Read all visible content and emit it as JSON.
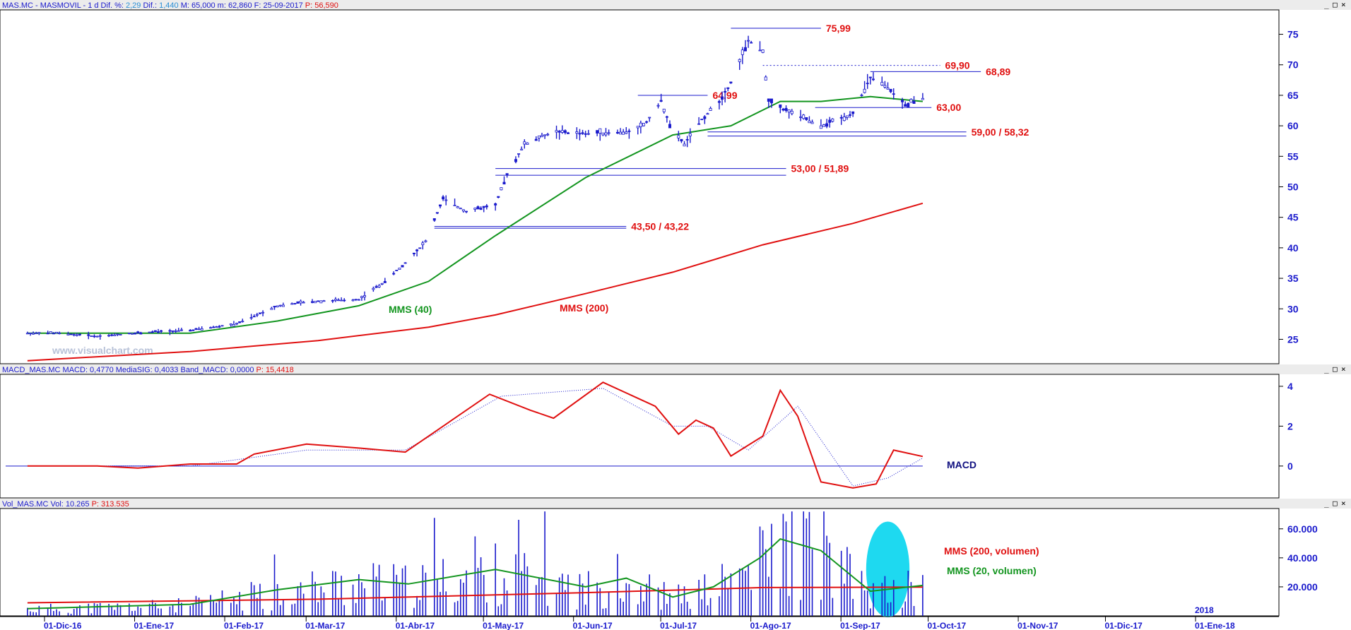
{
  "app": {
    "watermark": "www.visualchart.com"
  },
  "colors": {
    "blue": "#1a1acc",
    "red": "#e01010",
    "green": "#13951f",
    "grid": "#c8c8c8",
    "hl_fill": "#1ed9f0",
    "bg": "#ffffff",
    "header_bg": "#ececec"
  },
  "window_buttons": [
    "_",
    "□",
    "×"
  ],
  "price_panel": {
    "header": [
      {
        "text": "MAS.MC - MASMOVIL -  1 d  Dif. %:",
        "color": "#1a1acc"
      },
      {
        "text": "2,29",
        "color": "#2a8fd6"
      },
      {
        "text": "Dif.:",
        "color": "#1a1acc"
      },
      {
        "text": "1,440",
        "color": "#2a8fd6"
      },
      {
        "text": "M: 65,000  m: 62,860  F: 25-09-2017",
        "color": "#1a1acc"
      },
      {
        "text": "P: 56,590",
        "color": "#e01010"
      }
    ],
    "yticks": [
      "75",
      "70",
      "65",
      "60",
      "55",
      "50",
      "45",
      "40",
      "35",
      "30",
      "25"
    ],
    "annotations": {
      "mms40": "MMS (40)",
      "mms200": "MMS (200)"
    },
    "levels": [
      {
        "label": "75,99"
      },
      {
        "label": "69,90"
      },
      {
        "label": "68,89"
      },
      {
        "label": "64,99"
      },
      {
        "label": "63,00"
      },
      {
        "label": "59,00 / 58,32"
      },
      {
        "label": "53,00 / 51,89"
      },
      {
        "label": "43,50 / 43,22"
      }
    ]
  },
  "macd_panel": {
    "header": [
      {
        "text": "MACD_MAS.MC  MACD: 0,4770  MediaSIG: 0,4033  Band_MACD: 0,0000",
        "color": "#1a1acc"
      },
      {
        "text": "P: 15,4418",
        "color": "#e01010"
      }
    ],
    "yticks": [
      "4",
      "2",
      "0"
    ],
    "label": "MACD"
  },
  "volume_panel": {
    "header": [
      {
        "text": "Vol_MAS.MC  Vol: 10.265",
        "color": "#1a1acc"
      },
      {
        "text": "P: 313.535",
        "color": "#e01010"
      }
    ],
    "yticks": [
      "60.000",
      "40.000",
      "20.000"
    ],
    "labels": {
      "ma200": "MMS (200, volumen)",
      "ma20": "MMS (20, volumen)"
    }
  },
  "xaxis": {
    "ticks": [
      "01-Dic-16",
      "01-Ene-17",
      "01-Feb-17",
      "01-Mar-17",
      "01-Abr-17",
      "01-May-17",
      "01-Jun-17",
      "01-Jul-17",
      "01-Ago-17",
      "01-Sep-17",
      "01-Oct-17",
      "01-Nov-17",
      "01-Dic-17",
      "01-Ene-18"
    ],
    "year_label": "2018"
  },
  "chart_data": {
    "type": "line",
    "instrument": "MAS.MC",
    "price_close": [
      {
        "x": "2016-11-21",
        "y": 26.0
      },
      {
        "x": "2016-12-01",
        "y": 26.0
      },
      {
        "x": "2016-12-15",
        "y": 25.5
      },
      {
        "x": "2017-01-02",
        "y": 26.2
      },
      {
        "x": "2017-01-16",
        "y": 26.5
      },
      {
        "x": "2017-02-01",
        "y": 27.5
      },
      {
        "x": "2017-02-15",
        "y": 30.5
      },
      {
        "x": "2017-03-01",
        "y": 31.3
      },
      {
        "x": "2017-03-15",
        "y": 31.5
      },
      {
        "x": "2017-03-24",
        "y": 34.5
      },
      {
        "x": "2017-04-01",
        "y": 38.0
      },
      {
        "x": "2017-04-07",
        "y": 41.0
      },
      {
        "x": "2017-04-13",
        "y": 48.0
      },
      {
        "x": "2017-04-21",
        "y": 46.0
      },
      {
        "x": "2017-05-01",
        "y": 47.0
      },
      {
        "x": "2017-05-05",
        "y": 52.0
      },
      {
        "x": "2017-05-11",
        "y": 57.0
      },
      {
        "x": "2017-05-21",
        "y": 59.0
      },
      {
        "x": "2017-06-01",
        "y": 58.7
      },
      {
        "x": "2017-06-15",
        "y": 59.0
      },
      {
        "x": "2017-06-21",
        "y": 60.0
      },
      {
        "x": "2017-06-27",
        "y": 64.0
      },
      {
        "x": "2017-07-01",
        "y": 59.0
      },
      {
        "x": "2017-07-05",
        "y": 57.0
      },
      {
        "x": "2017-07-11",
        "y": 61.0
      },
      {
        "x": "2017-07-17",
        "y": 64.0
      },
      {
        "x": "2017-07-21",
        "y": 67.0
      },
      {
        "x": "2017-07-27",
        "y": 74.0
      },
      {
        "x": "2017-08-01",
        "y": 72.0
      },
      {
        "x": "2017-08-03",
        "y": 64.0
      },
      {
        "x": "2017-08-11",
        "y": 62.0
      },
      {
        "x": "2017-08-21",
        "y": 60.0
      },
      {
        "x": "2017-09-01",
        "y": 62.0
      },
      {
        "x": "2017-09-07",
        "y": 68.0
      },
      {
        "x": "2017-09-13",
        "y": 66.0
      },
      {
        "x": "2017-09-19",
        "y": 63.5
      },
      {
        "x": "2017-09-25",
        "y": 64.5
      }
    ],
    "mms40": [
      {
        "x": "2016-11-21",
        "y": 26.0
      },
      {
        "x": "2017-01-16",
        "y": 26.0
      },
      {
        "x": "2017-02-15",
        "y": 28.0
      },
      {
        "x": "2017-03-15",
        "y": 30.5
      },
      {
        "x": "2017-04-08",
        "y": 34.5
      },
      {
        "x": "2017-05-01",
        "y": 42.0
      },
      {
        "x": "2017-06-01",
        "y": 51.5
      },
      {
        "x": "2017-07-01",
        "y": 58.5
      },
      {
        "x": "2017-07-21",
        "y": 60.0
      },
      {
        "x": "2017-08-07",
        "y": 64.0
      },
      {
        "x": "2017-08-21",
        "y": 64.0
      },
      {
        "x": "2017-09-07",
        "y": 64.8
      },
      {
        "x": "2017-09-25",
        "y": 64.0
      }
    ],
    "mms200": [
      {
        "x": "2016-11-21",
        "y": 21.5
      },
      {
        "x": "2017-01-16",
        "y": 23.0
      },
      {
        "x": "2017-03-01",
        "y": 24.8
      },
      {
        "x": "2017-04-08",
        "y": 27.0
      },
      {
        "x": "2017-05-01",
        "y": 29.0
      },
      {
        "x": "2017-06-01",
        "y": 32.5
      },
      {
        "x": "2017-07-01",
        "y": 36.0
      },
      {
        "x": "2017-08-01",
        "y": 40.5
      },
      {
        "x": "2017-09-01",
        "y": 44.0
      },
      {
        "x": "2017-09-25",
        "y": 47.3
      }
    ],
    "levels": [
      {
        "label": "75,99",
        "y": 75.99,
        "from": "2017-07-21",
        "to": "2017-08-21",
        "style": "solid"
      },
      {
        "label": "69,90",
        "y": 69.9,
        "from": "2017-08-01",
        "to": "2017-10-01",
        "style": "dotted"
      },
      {
        "label": "68,89",
        "y": 68.89,
        "from": "2017-09-07",
        "to": "2017-10-15",
        "style": "solid"
      },
      {
        "label": "64,99",
        "y": 64.99,
        "from": "2017-06-19",
        "to": "2017-07-13",
        "style": "solid"
      },
      {
        "label": "63,00",
        "y": 63.0,
        "from": "2017-08-19",
        "to": "2017-09-28",
        "style": "solid"
      },
      {
        "label": "59,00 / 58,32",
        "y": 59.0,
        "y2": 58.32,
        "from": "2017-07-13",
        "to": "2017-10-10",
        "style": "solid"
      },
      {
        "label": "53,00 / 51,89",
        "y": 53.0,
        "y2": 51.89,
        "from": "2017-05-01",
        "to": "2017-08-09",
        "style": "solid"
      },
      {
        "label": "43,50 / 43,22",
        "y": 43.5,
        "y2": 43.22,
        "from": "2017-04-10",
        "to": "2017-06-15",
        "style": "solid"
      }
    ],
    "macd": [
      {
        "x": "2016-11-21",
        "y": 0.0
      },
      {
        "x": "2016-12-15",
        "y": 0.0
      },
      {
        "x": "2016-12-29",
        "y": -0.1
      },
      {
        "x": "2017-01-16",
        "y": 0.1
      },
      {
        "x": "2017-02-01",
        "y": 0.1
      },
      {
        "x": "2017-02-07",
        "y": 0.6
      },
      {
        "x": "2017-02-25",
        "y": 1.1
      },
      {
        "x": "2017-03-15",
        "y": 0.9
      },
      {
        "x": "2017-03-31",
        "y": 0.7
      },
      {
        "x": "2017-04-13",
        "y": 2.0
      },
      {
        "x": "2017-04-29",
        "y": 3.6
      },
      {
        "x": "2017-05-13",
        "y": 2.8
      },
      {
        "x": "2017-05-21",
        "y": 2.4
      },
      {
        "x": "2017-06-07",
        "y": 4.2
      },
      {
        "x": "2017-06-25",
        "y": 3.0
      },
      {
        "x": "2017-07-03",
        "y": 1.6
      },
      {
        "x": "2017-07-09",
        "y": 2.3
      },
      {
        "x": "2017-07-15",
        "y": 1.9
      },
      {
        "x": "2017-07-21",
        "y": 0.5
      },
      {
        "x": "2017-08-01",
        "y": 1.5
      },
      {
        "x": "2017-08-07",
        "y": 3.8
      },
      {
        "x": "2017-08-13",
        "y": 2.5
      },
      {
        "x": "2017-08-21",
        "y": -0.8
      },
      {
        "x": "2017-09-01",
        "y": -1.1
      },
      {
        "x": "2017-09-09",
        "y": -0.9
      },
      {
        "x": "2017-09-15",
        "y": 0.8
      },
      {
        "x": "2017-09-25",
        "y": 0.48
      }
    ],
    "macd_signal": [
      {
        "x": "2016-11-21",
        "y": 0.0
      },
      {
        "x": "2017-01-16",
        "y": 0.0
      },
      {
        "x": "2017-02-25",
        "y": 0.8
      },
      {
        "x": "2017-03-31",
        "y": 0.8
      },
      {
        "x": "2017-05-03",
        "y": 3.5
      },
      {
        "x": "2017-06-07",
        "y": 3.9
      },
      {
        "x": "2017-07-01",
        "y": 2.0
      },
      {
        "x": "2017-07-13",
        "y": 2.0
      },
      {
        "x": "2017-07-27",
        "y": 0.8
      },
      {
        "x": "2017-08-13",
        "y": 3.0
      },
      {
        "x": "2017-09-01",
        "y": -1.0
      },
      {
        "x": "2017-09-13",
        "y": -0.6
      },
      {
        "x": "2017-09-25",
        "y": 0.4
      }
    ],
    "volume_ma200": [
      {
        "x": "2016-11-21",
        "y": 9000
      },
      {
        "x": "2017-03-01",
        "y": 11500
      },
      {
        "x": "2017-06-01",
        "y": 16000
      },
      {
        "x": "2017-08-01",
        "y": 19500
      },
      {
        "x": "2017-09-25",
        "y": 19800
      }
    ],
    "volume_ma20": [
      {
        "x": "2016-11-21",
        "y": 5000
      },
      {
        "x": "2017-01-16",
        "y": 8000
      },
      {
        "x": "2017-02-15",
        "y": 18000
      },
      {
        "x": "2017-03-15",
        "y": 25000
      },
      {
        "x": "2017-04-01",
        "y": 22000
      },
      {
        "x": "2017-05-01",
        "y": 32000
      },
      {
        "x": "2017-06-01",
        "y": 20000
      },
      {
        "x": "2017-06-15",
        "y": 26000
      },
      {
        "x": "2017-07-01",
        "y": 13000
      },
      {
        "x": "2017-07-15",
        "y": 20000
      },
      {
        "x": "2017-07-31",
        "y": 40000
      },
      {
        "x": "2017-08-07",
        "y": 53000
      },
      {
        "x": "2017-08-21",
        "y": 45000
      },
      {
        "x": "2017-09-07",
        "y": 17000
      },
      {
        "x": "2017-09-25",
        "y": 21000
      }
    ],
    "volume_highlight": {
      "from": "2017-09-07",
      "to": "2017-09-19"
    },
    "ylim_price": [
      21,
      79
    ],
    "ylim_macd": [
      -1.6,
      4.6
    ],
    "ylim_volume": [
      0,
      74000
    ]
  }
}
